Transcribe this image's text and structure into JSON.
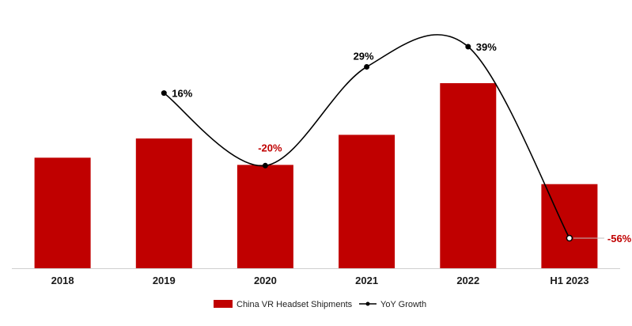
{
  "chart_data": {
    "type": "bar",
    "title": "",
    "xlabel": "",
    "ylabel": "",
    "grid": false,
    "legend_position": "bottom",
    "categories": [
      "2018",
      "2019",
      "2020",
      "2021",
      "2022",
      "H1 2023"
    ],
    "ylim": [
      0,
      160
    ],
    "series": [
      {
        "name": "China VR Headset Shipments",
        "type": "bar",
        "color": "#c00000",
        "values": [
          92,
          108,
          86,
          111,
          154,
          70
        ]
      },
      {
        "name": "YoY Growth",
        "type": "line",
        "color": "#000000",
        "values": [
          null,
          16,
          -20,
          29,
          39,
          -56
        ],
        "labels": [
          "",
          "16%",
          "-20%",
          "29%",
          "39%",
          "-56%"
        ],
        "label_colors": [
          "",
          "#000000",
          "#c00000",
          "#000000",
          "#000000",
          "#c00000"
        ]
      }
    ]
  }
}
